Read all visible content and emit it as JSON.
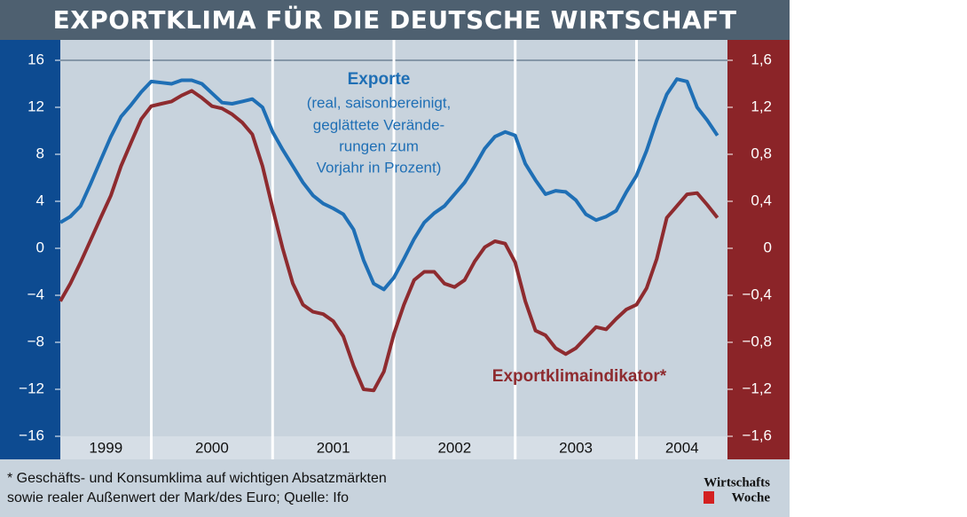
{
  "chart_data": {
    "type": "line",
    "title": "EXPORTKLIMA FÜR DIE DEUTSCHE WIRTSCHAFT",
    "x": [
      1999.25,
      1999.333,
      1999.417,
      1999.5,
      1999.583,
      1999.667,
      1999.75,
      1999.833,
      1999.917,
      2000,
      2000.083,
      2000.167,
      2000.25,
      2000.333,
      2000.417,
      2000.5,
      2000.583,
      2000.667,
      2000.75,
      2000.833,
      2000.917,
      2001,
      2001.083,
      2001.167,
      2001.25,
      2001.333,
      2001.417,
      2001.5,
      2001.583,
      2001.667,
      2001.75,
      2001.833,
      2001.917,
      2002,
      2002.083,
      2002.167,
      2002.25,
      2002.333,
      2002.417,
      2002.5,
      2002.583,
      2002.667,
      2002.75,
      2002.833,
      2002.917,
      2003,
      2003.083,
      2003.167,
      2003.25,
      2003.333,
      2003.417,
      2003.5,
      2003.583,
      2003.667,
      2003.75,
      2003.833,
      2003.917,
      2004,
      2004.083,
      2004.167,
      2004.25,
      2004.333,
      2004.417,
      2004.5,
      2004.583,
      2004.667
    ],
    "series": [
      {
        "name": "Exporte",
        "color": "#1f6fb5",
        "axis": "y",
        "values": [
          2.2,
          2.7,
          3.6,
          5.5,
          7.5,
          9.5,
          11.2,
          12.2,
          13.3,
          14.2,
          14.1,
          14.0,
          14.3,
          14.3,
          14.0,
          13.2,
          12.4,
          12.3,
          12.5,
          12.7,
          12.0,
          9.9,
          8.4,
          7.0,
          5.6,
          4.5,
          3.8,
          3.4,
          2.9,
          1.6,
          -1.0,
          -3.0,
          -3.5,
          -2.5,
          -0.9,
          0.8,
          2.2,
          3.0,
          3.6,
          4.6,
          5.6,
          7.0,
          8.5,
          9.5,
          9.9,
          9.6,
          7.2,
          5.8,
          4.6,
          4.9,
          4.8,
          4.1,
          2.9,
          2.4,
          2.7,
          3.2,
          4.8,
          6.2,
          8.3,
          10.9,
          13.1,
          14.4,
          14.2,
          12.0,
          10.9,
          9.6
        ]
      },
      {
        "name": "Exportklimaindikator*",
        "color": "#8e2b2f",
        "axis": "y2",
        "values": [
          -0.45,
          -0.3,
          -0.12,
          0.07,
          0.26,
          0.45,
          0.7,
          0.9,
          1.1,
          1.21,
          1.23,
          1.25,
          1.3,
          1.34,
          1.28,
          1.21,
          1.19,
          1.14,
          1.07,
          0.97,
          0.7,
          0.34,
          0.0,
          -0.3,
          -0.48,
          -0.54,
          -0.56,
          -0.62,
          -0.75,
          -1.0,
          -1.2,
          -1.21,
          -1.05,
          -0.73,
          -0.48,
          -0.27,
          -0.2,
          -0.2,
          -0.3,
          -0.33,
          -0.27,
          -0.11,
          0.01,
          0.06,
          0.04,
          -0.12,
          -0.45,
          -0.7,
          -0.74,
          -0.85,
          -0.9,
          -0.85,
          -0.76,
          -0.67,
          -0.69,
          -0.6,
          -0.52,
          -0.48,
          -0.34,
          -0.09,
          0.26,
          0.36,
          0.46,
          0.47,
          0.37,
          0.26
        ]
      }
    ],
    "exporte_note": [
      "(real, saisonbereinigt,",
      "geglättete Verände-",
      "rungen zum",
      "Vorjahr in Prozent)"
    ],
    "xlim": [
      1999.25,
      2004.75
    ],
    "xticks": [
      2000,
      2001,
      2002,
      2003,
      2004
    ],
    "year_labels": [
      1999,
      2000,
      2001,
      2002,
      2003,
      2004
    ],
    "ylim": [
      -16,
      16
    ],
    "yticks": [
      {
        "value": -16,
        "label": "−16"
      },
      {
        "value": -12,
        "label": "−12"
      },
      {
        "value": -8,
        "label": "−8"
      },
      {
        "value": -4,
        "label": "−4"
      },
      0,
      4,
      8,
      12,
      16
    ],
    "y2lim": [
      -1.6,
      1.6
    ],
    "y2ticks": [
      {
        "value": -1.6,
        "label": "−1,6"
      },
      {
        "value": -1.2,
        "label": "−1,2"
      },
      {
        "value": -0.8,
        "label": "−0,8"
      },
      {
        "value": -0.4,
        "label": "−0,4"
      },
      0,
      {
        "value": 0.4,
        "label": "0,4"
      },
      {
        "value": 0.8,
        "label": "0,8"
      },
      {
        "value": 1.2,
        "label": "1,2"
      },
      {
        "value": 1.6,
        "label": "1,6"
      }
    ],
    "footnote": [
      "* Geschäfts- und Konsumklima auf wichtigen Absatzmärkten",
      "sowie realer Außenwert der Mark/des Euro; Quelle: Ifo"
    ],
    "logo": [
      "Wirtschafts",
      "Woche"
    ]
  }
}
